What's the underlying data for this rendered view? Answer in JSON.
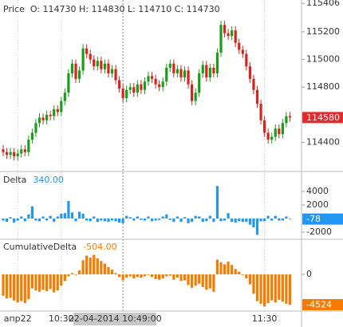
{
  "chart_data": [
    {
      "type": "candlestick",
      "title": "Price  O: 114730 H: 114830 L: 114710 C: 114730",
      "up_color": "#1a9e1a",
      "down_color": "#d9231d",
      "last_color": "#e8282b",
      "ylim": [
        114190,
        115430
      ],
      "yticks": [
        114400,
        114800,
        115000,
        115200,
        115406
      ],
      "last": 114580,
      "open": [
        114350,
        114330,
        114310,
        114330,
        114300,
        114320,
        114350,
        114330,
        114420,
        114470,
        114540,
        114580,
        114560,
        114600,
        114590,
        114640,
        114620,
        114700,
        114760,
        114900,
        114970,
        114860,
        114920,
        115080,
        115040,
        115000,
        114950,
        114990,
        114930,
        114970,
        114900,
        114930,
        114850,
        114790,
        114720,
        114780,
        114800,
        114760,
        114820,
        114780,
        114840,
        114880,
        114860,
        114820,
        114800,
        114840,
        114940,
        114970,
        114900,
        114930,
        114870,
        114920,
        114820,
        114700,
        114760,
        114900,
        114960,
        114870,
        114940,
        114900,
        115050,
        115250,
        115190,
        115170,
        115210,
        115120,
        115070,
        115040,
        114950,
        114860,
        114780,
        114680,
        114560,
        114470,
        114420,
        114440,
        114500,
        114460,
        114540,
        114590
      ],
      "high": [
        114380,
        114360,
        114360,
        114360,
        114350,
        114380,
        114380,
        114450,
        114500,
        114570,
        114610,
        114610,
        114630,
        114630,
        114670,
        114670,
        114730,
        114790,
        114930,
        115000,
        115000,
        114950,
        115110,
        115110,
        115070,
        115030,
        115020,
        115020,
        115000,
        115000,
        114960,
        114960,
        114880,
        114820,
        114810,
        114830,
        114830,
        114850,
        114850,
        114870,
        114910,
        114910,
        114890,
        114850,
        114870,
        114970,
        115000,
        115000,
        114960,
        114960,
        114950,
        114950,
        114850,
        114790,
        114930,
        114990,
        114990,
        114970,
        114970,
        115080,
        115280,
        115280,
        115220,
        115240,
        115240,
        115150,
        115100,
        115070,
        114980,
        114890,
        114810,
        114710,
        114590,
        114500,
        114470,
        114530,
        114530,
        114570,
        114620,
        114620
      ],
      "low": [
        114300,
        114280,
        114280,
        114270,
        114270,
        114290,
        114300,
        114300,
        114390,
        114440,
        114510,
        114530,
        114530,
        114560,
        114560,
        114590,
        114590,
        114670,
        114730,
        114870,
        114830,
        114830,
        114890,
        115010,
        114970,
        114920,
        114920,
        114900,
        114900,
        114870,
        114870,
        114820,
        114760,
        114690,
        114690,
        114750,
        114730,
        114730,
        114750,
        114750,
        114810,
        114830,
        114790,
        114770,
        114770,
        114810,
        114910,
        114870,
        114870,
        114840,
        114840,
        114790,
        114670,
        114670,
        114730,
        114870,
        114840,
        114840,
        114870,
        114870,
        115020,
        115160,
        115140,
        115140,
        115090,
        115040,
        115010,
        114920,
        114830,
        114750,
        114650,
        114530,
        114440,
        114390,
        114390,
        114410,
        114430,
        114430,
        114510,
        114550
      ],
      "close": [
        114330,
        114310,
        114330,
        114300,
        114320,
        114350,
        114330,
        114420,
        114470,
        114540,
        114580,
        114560,
        114600,
        114590,
        114640,
        114620,
        114700,
        114760,
        114900,
        114970,
        114860,
        114920,
        115080,
        115040,
        115000,
        114950,
        114990,
        114930,
        114970,
        114900,
        114930,
        114850,
        114790,
        114720,
        114780,
        114800,
        114760,
        114820,
        114780,
        114840,
        114880,
        114860,
        114820,
        114800,
        114840,
        114940,
        114970,
        114900,
        114930,
        114870,
        114920,
        114820,
        114700,
        114760,
        114900,
        114960,
        114870,
        114940,
        114900,
        115050,
        115250,
        115190,
        115170,
        115210,
        115120,
        115070,
        115040,
        114950,
        114860,
        114780,
        114680,
        114560,
        114470,
        114420,
        114440,
        114500,
        114460,
        114540,
        114590,
        114580
      ]
    },
    {
      "type": "bar",
      "title": "Delta",
      "value_label": "340.00",
      "color": "#2196f3",
      "ylim": [
        -3060,
        6940
      ],
      "yticks": [
        4000,
        2000,
        -2000
      ],
      "last": -78,
      "values": [
        -300,
        -500,
        200,
        -600,
        -300,
        300,
        -400,
        600,
        1800,
        -300,
        -400,
        300,
        -300,
        400,
        -500,
        300,
        700,
        800,
        2600,
        900,
        -400,
        1000,
        700,
        -300,
        -400,
        300,
        -500,
        -300,
        -400,
        -500,
        -300,
        -400,
        -600,
        -700,
        400,
        200,
        -300,
        300,
        -200,
        -300,
        300,
        -400,
        -300,
        -200,
        300,
        600,
        -200,
        -500,
        300,
        -500,
        200,
        -700,
        -500,
        400,
        300,
        -500,
        -400,
        400,
        -500,
        4800,
        -400,
        -300,
        800,
        -500,
        -600,
        -400,
        -500,
        -500,
        -900,
        -1300,
        -2400,
        -400,
        -400,
        400,
        -300,
        400,
        -300,
        -300,
        300,
        -78
      ]
    },
    {
      "type": "bar",
      "title": "CumulativeDelta",
      "value_label": "-504.00",
      "color": "#f57c00",
      "ylim": [
        -5480,
        5240
      ],
      "yticks": [
        0
      ],
      "last": -4524,
      "values": [
        -3200,
        -3600,
        -3500,
        -3900,
        -4200,
        -4000,
        -4300,
        -3700,
        -2100,
        -2400,
        -2600,
        -2300,
        -2500,
        -2200,
        -2700,
        -2400,
        -1700,
        -1000,
        -300,
        200,
        -100,
        600,
        2100,
        2800,
        2500,
        2900,
        2400,
        2000,
        1600,
        1100,
        700,
        200,
        -400,
        -900,
        -500,
        -300,
        -600,
        -400,
        -500,
        -300,
        -100,
        -400,
        -700,
        -800,
        -600,
        -300,
        -200,
        -800,
        -500,
        -1000,
        -900,
        -1600,
        -2000,
        -1700,
        -1400,
        -1900,
        -2300,
        -2100,
        -2600,
        2200,
        1800,
        1500,
        1900,
        1400,
        800,
        400,
        -100,
        -600,
        -1500,
        -2900,
        -4000,
        -4400,
        -4800,
        -4300,
        -3900,
        -4200,
        -3800,
        -4100,
        -4400,
        -4524
      ]
    }
  ],
  "time_axis": {
    "categories": [
      null,
      null,
      null,
      null,
      "апр22",
      null,
      null,
      null,
      null,
      null,
      null,
      null,
      null,
      null,
      null,
      null,
      "10:30",
      null,
      null,
      null,
      null,
      null,
      null,
      null,
      null,
      null,
      null,
      null,
      null,
      null,
      null,
      null,
      null,
      null,
      null,
      null,
      null,
      null,
      null,
      null,
      null,
      null,
      null,
      null,
      null,
      null,
      null,
      null,
      null,
      null,
      null,
      null,
      null,
      null,
      null,
      null,
      null,
      null,
      null,
      null,
      null,
      null,
      null,
      null,
      null,
      null,
      null,
      null,
      null,
      null,
      null,
      null,
      "11:30",
      null,
      null,
      null,
      null,
      null,
      null,
      null
    ],
    "crosshair": {
      "label": "22-04-2014 10:49:00",
      "index": 33
    }
  }
}
